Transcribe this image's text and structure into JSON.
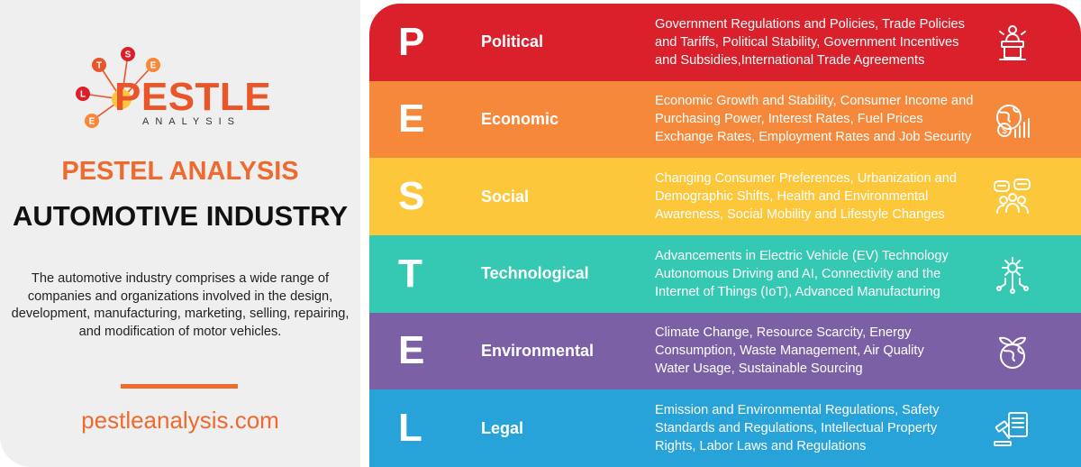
{
  "logo": {
    "letters": [
      "T",
      "S",
      "E",
      "L",
      "E"
    ],
    "wordmark": "PESTLE",
    "subtitle": "ANALYSIS"
  },
  "left": {
    "title_line1": "PESTEL ANALYSIS",
    "title_line2": "AUTOMOTIVE INDUSTRY",
    "description": "The automotive industry comprises a wide range of companies and organizations involved in the design, development, manufacturing, marketing, selling, repairing, and modification of motor vehicles.",
    "website": "pestleanalysis.com"
  },
  "colors": {
    "accent": "#ee6a2f",
    "political": "#d9202b",
    "economic": "#f5883a",
    "social": "#fcc73a",
    "technological": "#35c9b4",
    "environmental": "#7c60a6",
    "legal": "#27a3d9"
  },
  "factors": [
    {
      "letter": "P",
      "name": "Political",
      "color": "#d9202b",
      "icon": "podium-speaker-icon",
      "lines": [
        "Government Regulations and Policies, Trade Policies",
        "and Tariffs, Political Stability, Government Incentives",
        "and Subsidies,International Trade Agreements"
      ]
    },
    {
      "letter": "E",
      "name": "Economic",
      "color": "#f5883a",
      "icon": "globe-money-chart-icon",
      "lines": [
        "Economic Growth and Stability, Consumer Income and",
        "Purchasing Power, Interest Rates, Fuel Prices",
        "Exchange Rates, Employment Rates and Job Security"
      ]
    },
    {
      "letter": "S",
      "name": "Social",
      "color": "#fcc73a",
      "icon": "people-chat-icon",
      "lines": [
        "Changing Consumer Preferences, Urbanization and",
        "Demographic Shifts, Health and Environmental",
        "Awareness, Social Mobility and Lifestyle Changes"
      ]
    },
    {
      "letter": "T",
      "name": "Technological",
      "color": "#35c9b4",
      "icon": "gear-circuit-icon",
      "lines": [
        "Advancements in Electric Vehicle (EV) Technology",
        "Autonomous Driving and AI, Connectivity and the",
        "Internet of Things (IoT), Advanced Manufacturing"
      ]
    },
    {
      "letter": "E",
      "name": "Environmental",
      "color": "#7c60a6",
      "icon": "globe-leaves-icon",
      "lines": [
        "Climate Change, Resource Scarcity, Energy",
        "Consumption, Waste Management, Air Quality",
        "Water Usage, Sustainable Sourcing"
      ]
    },
    {
      "letter": "L",
      "name": "Legal",
      "color": "#27a3d9",
      "icon": "gavel-document-icon",
      "lines": [
        "Emission and Environmental Regulations, Safety",
        "Standards and Regulations, Intellectual Property",
        "Rights, Labor Laws and Regulations"
      ]
    }
  ]
}
